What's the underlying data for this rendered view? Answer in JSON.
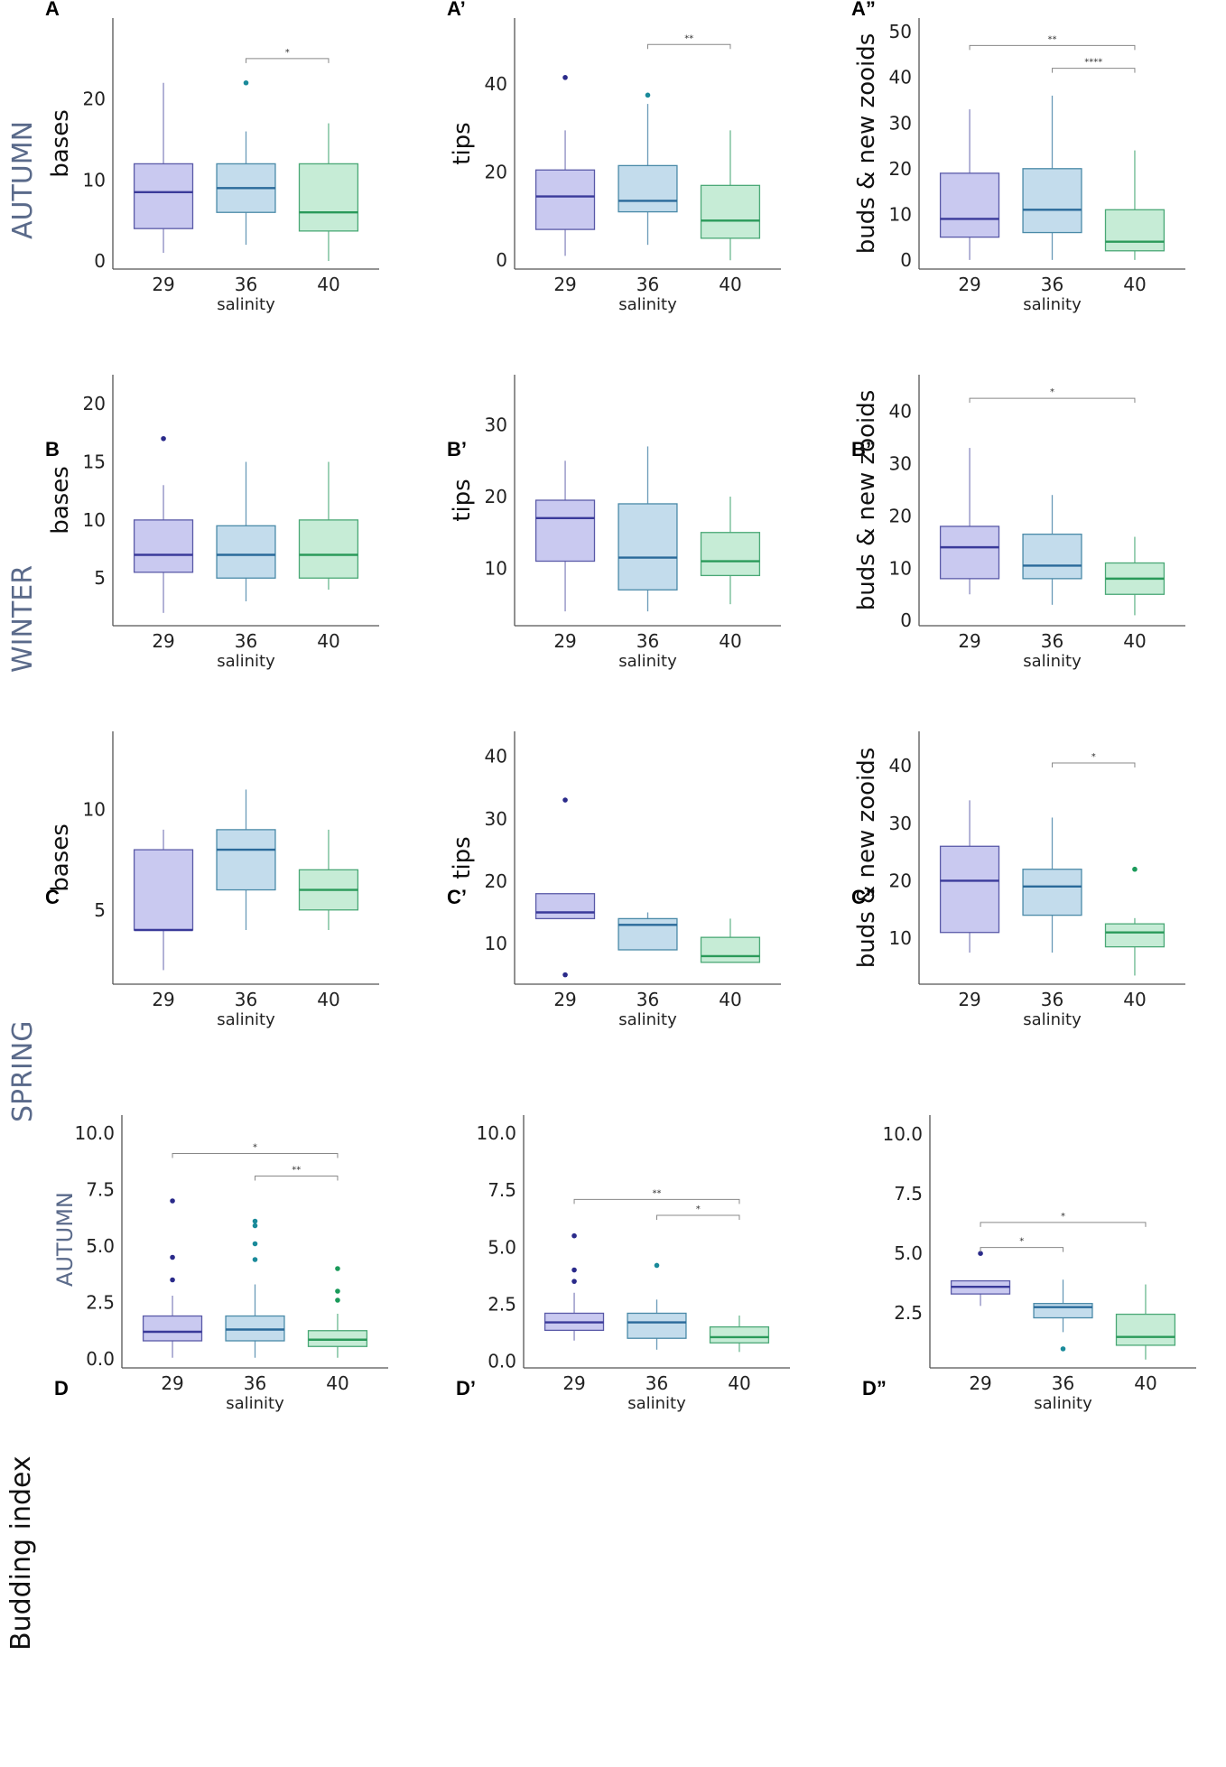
{
  "figure": {
    "row_labels": {
      "bottom_row": "Budding index"
    },
    "season_labels": [
      "AUTUMN",
      "WINTER",
      "SPRING"
    ]
  },
  "colors": {
    "29": {
      "fill": "#c9c9f0",
      "stroke": "#5a5aa8",
      "median": "#3a3a9a",
      "whisker": "#8a8ac0",
      "dot": "#2a2a8a"
    },
    "36": {
      "fill": "#c3dcec",
      "stroke": "#4a8aa8",
      "median": "#2a6a9a",
      "whisker": "#6a9ab8",
      "dot": "#1a8a9a"
    },
    "40": {
      "fill": "#c6ecd6",
      "stroke": "#4aa876",
      "median": "#2a9a5a",
      "whisker": "#6ab890",
      "dot": "#1a9a5a"
    }
  },
  "chart_data": [
    {
      "id": "A",
      "label": "A",
      "season": "AUTUMN",
      "type": "box",
      "ylabel": "bases",
      "xlabel": "salinity",
      "categories": [
        "29",
        "36",
        "40"
      ],
      "ylim": [
        -1,
        30
      ],
      "yticks": [
        "0",
        "10",
        "20"
      ],
      "ytick_values": [
        0,
        10,
        20
      ],
      "boxes": [
        {
          "low": 1,
          "q1": 4,
          "median": 8.5,
          "q3": 12,
          "high": 22,
          "outliers": []
        },
        {
          "low": 2,
          "q1": 6,
          "median": 9,
          "q3": 12,
          "high": 16,
          "outliers": [
            22
          ]
        },
        {
          "low": 0,
          "q1": 3.7,
          "median": 6,
          "q3": 12,
          "high": 17,
          "outliers": []
        }
      ],
      "significance": [
        {
          "from": "36",
          "to": "40",
          "y": 25,
          "stars": "*"
        }
      ]
    },
    {
      "id": "A1",
      "label": "A’",
      "type": "box",
      "ylabel": "tips",
      "xlabel": "salinity",
      "categories": [
        "29",
        "36",
        "40"
      ],
      "ylim": [
        -2,
        55
      ],
      "yticks": [
        "0",
        "20",
        "40"
      ],
      "ytick_values": [
        0,
        20,
        40
      ],
      "boxes": [
        {
          "low": 1,
          "q1": 7,
          "median": 14.5,
          "q3": 20.5,
          "high": 29.5,
          "outliers": [
            41.5
          ]
        },
        {
          "low": 3.5,
          "q1": 11,
          "median": 13.5,
          "q3": 21.5,
          "high": 35.5,
          "outliers": [
            37.5
          ]
        },
        {
          "low": 0,
          "q1": 5,
          "median": 9,
          "q3": 17,
          "high": 29.5,
          "outliers": []
        }
      ],
      "significance": [
        {
          "from": "36",
          "to": "40",
          "y": 49,
          "stars": "**"
        }
      ]
    },
    {
      "id": "A2",
      "label": "A”",
      "type": "box",
      "ylabel": "buds & new zooids",
      "xlabel": "salinity",
      "categories": [
        "29",
        "36",
        "40"
      ],
      "ylim": [
        -2,
        53
      ],
      "yticks": [
        "0",
        "10",
        "20",
        "30",
        "40",
        "50"
      ],
      "ytick_values": [
        0,
        10,
        20,
        30,
        40,
        50
      ],
      "boxes": [
        {
          "low": 0,
          "q1": 5,
          "median": 9,
          "q3": 19,
          "high": 33,
          "outliers": []
        },
        {
          "low": 0,
          "q1": 6,
          "median": 11,
          "q3": 20,
          "high": 36,
          "outliers": []
        },
        {
          "low": 0,
          "q1": 2,
          "median": 4,
          "q3": 11,
          "high": 24,
          "outliers": []
        }
      ],
      "significance": [
        {
          "from": "29",
          "to": "40",
          "y": 47,
          "stars": "**"
        },
        {
          "from": "36",
          "to": "40",
          "y": 42,
          "stars": "****"
        }
      ]
    },
    {
      "id": "B",
      "label": "B",
      "season": "WINTER",
      "type": "box",
      "ylabel": "bases",
      "xlabel": "salinity",
      "categories": [
        "29",
        "36",
        "40"
      ],
      "ylim": [
        0.9,
        22.5
      ],
      "yticks": [
        "5",
        "10",
        "15",
        "20"
      ],
      "ytick_values": [
        5,
        10,
        15,
        20
      ],
      "boxes": [
        {
          "low": 2,
          "q1": 5.5,
          "median": 7,
          "q3": 10,
          "high": 13,
          "outliers": [
            17
          ]
        },
        {
          "low": 3,
          "q1": 5,
          "median": 7,
          "q3": 9.5,
          "high": 15,
          "outliers": []
        },
        {
          "low": 4,
          "q1": 5,
          "median": 7,
          "q3": 10,
          "high": 15,
          "outliers": []
        }
      ],
      "significance": []
    },
    {
      "id": "B1",
      "label": "B’",
      "type": "box",
      "ylabel": "tips",
      "xlabel": "salinity",
      "categories": [
        "29",
        "36",
        "40"
      ],
      "ylim": [
        2,
        37
      ],
      "yticks": [
        "10",
        "20",
        "30"
      ],
      "ytick_values": [
        10,
        20,
        30
      ],
      "boxes": [
        {
          "low": 4,
          "q1": 11,
          "median": 17,
          "q3": 19.5,
          "high": 25,
          "outliers": []
        },
        {
          "low": 4,
          "q1": 7,
          "median": 11.5,
          "q3": 19,
          "high": 27,
          "outliers": []
        },
        {
          "low": 5,
          "q1": 9,
          "median": 11,
          "q3": 15,
          "high": 20,
          "outliers": []
        }
      ],
      "significance": []
    },
    {
      "id": "B2",
      "label": "B”",
      "type": "box",
      "ylabel": "buds & new zooids",
      "xlabel": "salinity",
      "categories": [
        "29",
        "36",
        "40"
      ],
      "ylim": [
        -1,
        47
      ],
      "yticks": [
        "0",
        "10",
        "20",
        "30",
        "40"
      ],
      "ytick_values": [
        0,
        10,
        20,
        30,
        40
      ],
      "boxes": [
        {
          "low": 5,
          "q1": 8,
          "median": 14,
          "q3": 18,
          "high": 33,
          "outliers": []
        },
        {
          "low": 3,
          "q1": 8,
          "median": 10.5,
          "q3": 16.5,
          "high": 24,
          "outliers": []
        },
        {
          "low": 1,
          "q1": 5,
          "median": 8,
          "q3": 11,
          "high": 16,
          "outliers": []
        }
      ],
      "significance": [
        {
          "from": "29",
          "to": "40",
          "y": 42.5,
          "stars": "*"
        }
      ]
    },
    {
      "id": "C",
      "label": "C",
      "season": "SPRING",
      "type": "box",
      "ylabel": "bases",
      "xlabel": "salinity",
      "categories": [
        "29",
        "36",
        "40"
      ],
      "ylim": [
        1.3,
        13.9
      ],
      "yticks": [
        "5",
        "10"
      ],
      "ytick_values": [
        5,
        10
      ],
      "boxes": [
        {
          "low": 2,
          "q1": 4,
          "median": 4,
          "q3": 8,
          "high": 9,
          "outliers": []
        },
        {
          "low": 4,
          "q1": 6,
          "median": 8,
          "q3": 9,
          "high": 11,
          "outliers": []
        },
        {
          "low": 4,
          "q1": 5,
          "median": 6,
          "q3": 7,
          "high": 9,
          "outliers": []
        }
      ],
      "significance": []
    },
    {
      "id": "C1",
      "label": "C’",
      "type": "box",
      "ylabel": "tips",
      "xlabel": "salinity",
      "categories": [
        "29",
        "36",
        "40"
      ],
      "ylim": [
        3.5,
        44
      ],
      "yticks": [
        "10",
        "20",
        "30",
        "40"
      ],
      "ytick_values": [
        10,
        20,
        30,
        40
      ],
      "boxes": [
        {
          "low": 14,
          "q1": 14,
          "median": 15,
          "q3": 18,
          "high": 18,
          "outliers": [
            33,
            5
          ]
        },
        {
          "low": 9,
          "q1": 9,
          "median": 13,
          "q3": 14,
          "high": 15,
          "outliers": []
        },
        {
          "low": 7,
          "q1": 7,
          "median": 8,
          "q3": 11,
          "high": 14,
          "outliers": []
        }
      ],
      "significance": []
    },
    {
      "id": "C2",
      "label": "C”",
      "type": "box",
      "ylabel": "buds & new zooids",
      "xlabel": "salinity",
      "categories": [
        "29",
        "36",
        "40"
      ],
      "ylim": [
        2,
        46
      ],
      "yticks": [
        "10",
        "20",
        "30",
        "40"
      ],
      "ytick_values": [
        10,
        20,
        30,
        40
      ],
      "boxes": [
        {
          "low": 7.5,
          "q1": 11,
          "median": 20,
          "q3": 26,
          "high": 34,
          "outliers": []
        },
        {
          "low": 7.5,
          "q1": 14,
          "median": 19,
          "q3": 22,
          "high": 31,
          "outliers": []
        },
        {
          "low": 3.5,
          "q1": 8.5,
          "median": 11,
          "q3": 12.5,
          "high": 13.5,
          "outliers": [
            22
          ]
        }
      ],
      "significance": [
        {
          "from": "36",
          "to": "40",
          "y": 40.5,
          "stars": "*"
        }
      ]
    },
    {
      "id": "D",
      "label": "D",
      "season": "AUTUMN",
      "type": "box",
      "ylabel": "",
      "xlabel": "salinity",
      "categories": [
        "29",
        "36",
        "40"
      ],
      "ylim": [
        -0.4,
        10.8
      ],
      "yticks": [
        "0.0",
        "2.5",
        "5.0",
        "7.5",
        "10.0"
      ],
      "ytick_values": [
        0,
        2.5,
        5,
        7.5,
        10
      ],
      "boxes": [
        {
          "low": 0.05,
          "q1": 0.8,
          "median": 1.2,
          "q3": 1.9,
          "high": 2.8,
          "outliers": [
            3.5,
            4.5,
            7.0
          ]
        },
        {
          "low": 0.05,
          "q1": 0.8,
          "median": 1.3,
          "q3": 1.9,
          "high": 3.3,
          "outliers": [
            4.4,
            5.1,
            5.9,
            6.1
          ]
        },
        {
          "low": 0.05,
          "q1": 0.55,
          "median": 0.85,
          "q3": 1.25,
          "high": 2.0,
          "outliers": [
            2.6,
            3.0,
            4.0
          ]
        }
      ],
      "significance": [
        {
          "from": "29",
          "to": "40",
          "y": 9.1,
          "stars": "*"
        },
        {
          "from": "36",
          "to": "40",
          "y": 8.1,
          "stars": "**"
        }
      ]
    },
    {
      "id": "D1",
      "label": "D’",
      "type": "box",
      "ylabel": "",
      "xlabel": "salinity",
      "categories": [
        "29",
        "36",
        "40"
      ],
      "ylim": [
        -0.3,
        10.8
      ],
      "yticks": [
        "0.0",
        "2.5",
        "5.0",
        "7.5",
        "10.0"
      ],
      "ytick_values": [
        0,
        2.5,
        5,
        7.5,
        10
      ],
      "boxes": [
        {
          "low": 0.9,
          "q1": 1.35,
          "median": 1.7,
          "q3": 2.1,
          "high": 3.0,
          "outliers": [
            3.5,
            4.0,
            5.5
          ]
        },
        {
          "low": 0.5,
          "q1": 1.0,
          "median": 1.7,
          "q3": 2.1,
          "high": 2.7,
          "outliers": [
            4.2
          ]
        },
        {
          "low": 0.4,
          "q1": 0.8,
          "median": 1.05,
          "q3": 1.5,
          "high": 2.0,
          "outliers": []
        }
      ],
      "significance": [
        {
          "from": "29",
          "to": "40",
          "y": 7.1,
          "stars": "**"
        },
        {
          "from": "36",
          "to": "40",
          "y": 6.4,
          "stars": "*"
        }
      ]
    },
    {
      "id": "D2",
      "label": "D”",
      "type": "box",
      "ylabel": "",
      "xlabel": "salinity",
      "categories": [
        "29",
        "36",
        "40"
      ],
      "ylim": [
        0.2,
        10.8
      ],
      "yticks": [
        "2.5",
        "5.0",
        "7.5",
        "10.0"
      ],
      "ytick_values": [
        2.5,
        5,
        7.5,
        10
      ],
      "boxes": [
        {
          "low": 2.8,
          "q1": 3.3,
          "median": 3.6,
          "q3": 3.85,
          "high": 3.85,
          "outliers": [
            5.0
          ]
        },
        {
          "low": 1.7,
          "q1": 2.3,
          "median": 2.75,
          "q3": 2.9,
          "high": 3.9,
          "outliers": [
            1.0
          ]
        },
        {
          "low": 0.55,
          "q1": 1.15,
          "median": 1.5,
          "q3": 2.45,
          "high": 3.7,
          "outliers": []
        }
      ],
      "significance": [
        {
          "from": "29",
          "to": "40",
          "y": 6.3,
          "stars": "*"
        },
        {
          "from": "29",
          "to": "36",
          "y": 5.25,
          "stars": "*"
        }
      ]
    }
  ]
}
